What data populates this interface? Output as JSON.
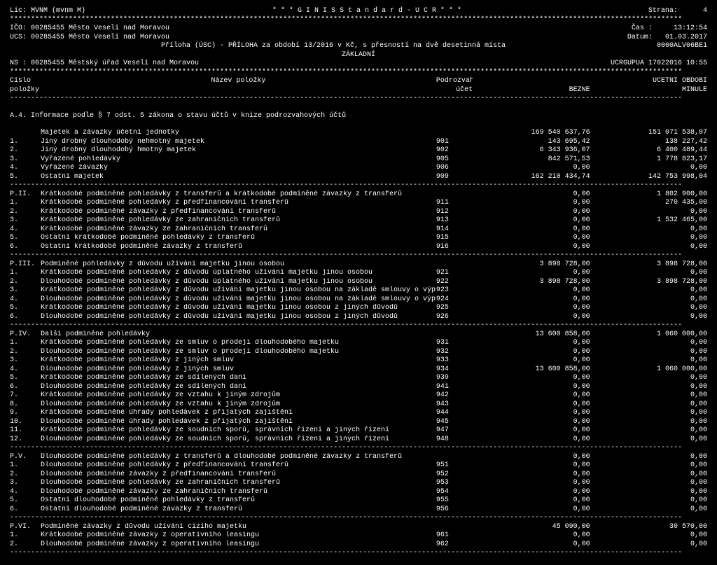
{
  "header": {
    "lic": "Lic: MVNM (mvnm M)",
    "system": "* * *   G I N I S   S t a n d a r d  -  U C R   * * *",
    "page_label": "Strana:",
    "page_no": "4",
    "ico": "IČO: 00285455   Město Veselí nad Moravou",
    "ucs": "UCS: 00285455   Město Veselí nad Moravou",
    "time_label": "Čas  :",
    "time": "13:12:54",
    "date_label": "Datum:",
    "date": "01.03.2017",
    "report": "Příloha (ÚSC) - PŘÍLOHA  za období 13/2016 v Kč, s přesností na dvě desetinná místa",
    "report_sub": "ZÁKLADNÍ",
    "code_right": "0000ALV06BE1",
    "ns": "NS : 00285455   Městský úřad Veselí nad Moravou",
    "ucrg": "UCRGUPUA 17022016 10:55",
    "col_cislo": "Číslo",
    "col_polozky": "položky",
    "col_nazev": "Název položky",
    "col_podrozv": "Podrozvahový",
    "col_ucet": "účet",
    "col_ucetni": "ÚČETNÍ OBDOBÍ",
    "col_bezne": "BĚŽNÉ",
    "col_minule": "MINULÉ"
  },
  "stars": "****************************************************************************************************************************************************************",
  "dashes": "----------------------------------------------------------------------------------------------------------------------------------------------------------------",
  "a4_title": "A.4. Informace podle § 7 odst. 5 zákona o stavu účtů v knize podrozvahových účtů",
  "sections": [
    {
      "head": {
        "sec": "",
        "desc": "Majetek a závazky účetní jednotky",
        "acct": "",
        "b": "169 540 637,76",
        "m": "151 071 538,07"
      },
      "rows": [
        {
          "sec": "1.",
          "desc": "Jiný drobný dlouhodobý nehmotný majetek",
          "acct": "901",
          "b": "143 695,42",
          "m": "138 227,42"
        },
        {
          "sec": "2.",
          "desc": "Jiný drobný dlouhodobý hmotný majetek",
          "acct": "902",
          "b": "6 343 936,07",
          "m": "6 400 489,44"
        },
        {
          "sec": "3.",
          "desc": "Vyřazené pohledávky",
          "acct": "905",
          "b": "842 571,53",
          "m": "1 778 823,17"
        },
        {
          "sec": "4.",
          "desc": "Vyřazené závazky",
          "acct": "906",
          "b": "0,00",
          "m": "0,00"
        },
        {
          "sec": "5.",
          "desc": "Ostatní majetek",
          "acct": "909",
          "b": "162 210 434,74",
          "m": "142 753 998,04"
        }
      ]
    },
    {
      "head": {
        "sec": "P.II.",
        "desc": "Krátkodobé podmíněné pohledávky z transferů a krátkodobé podmíněné závazky z transferů",
        "acct": "",
        "b": "0,00",
        "m": "1 802 900,00"
      },
      "rows": [
        {
          "sec": "1.",
          "desc": "Krátkodobé podmíněné pohledávky z předfinancování transferů",
          "acct": "911",
          "b": "0,00",
          "m": "270 435,00"
        },
        {
          "sec": "2.",
          "desc": "Krátkodobé podmíněné závazky z předfinancování transferů",
          "acct": "912",
          "b": "0,00",
          "m": "0,00"
        },
        {
          "sec": "3.",
          "desc": "Krátkodobé podmíněné pohledávky ze zahraničních transferů",
          "acct": "913",
          "b": "0,00",
          "m": "1 532 465,00"
        },
        {
          "sec": "4.",
          "desc": "Krátkodobé podmíněné závazky ze zahraničních transferů",
          "acct": "914",
          "b": "0,00",
          "m": "0,00"
        },
        {
          "sec": "5.",
          "desc": "Ostatní krátkodobé podmíněné pohledávky z transferů",
          "acct": "915",
          "b": "0,00",
          "m": "0,00"
        },
        {
          "sec": "6.",
          "desc": "Ostatní krátkodobé podmíněné závazky z transferů",
          "acct": "916",
          "b": "0,00",
          "m": "0,00"
        }
      ]
    },
    {
      "head": {
        "sec": "P.III.",
        "desc": "Podmíněné pohledávky z důvodu užívání majetku jinou osobou",
        "acct": "",
        "b": "3 898 728,00",
        "m": "3 898 728,00"
      },
      "rows": [
        {
          "sec": "1.",
          "desc": "Krátkodobé podmíněné pohledávky z důvodu úplatného užívání majetku jinou osobou",
          "acct": "921",
          "b": "0,00",
          "m": "0,00"
        },
        {
          "sec": "2.",
          "desc": "Dlouhodobé podmíněné pohledávky z důvodu úplatného užívání majetku jinou osobou",
          "acct": "922",
          "b": "3 898 728,00",
          "m": "3 898 728,00"
        },
        {
          "sec": "3.",
          "desc": "Krátkodobé podmíněné pohledávky z důvodu užívání majetku jinou osobou na základě smlouvy o výpůjčce",
          "acct": "923",
          "b": "0,00",
          "m": "0,00"
        },
        {
          "sec": "4.",
          "desc": "Dlouhodobé podmíněné pohledávky z důvodu užívání majetku jinou osobou na základě smlouvy o výpůjčce",
          "acct": "924",
          "b": "0,00",
          "m": "0,00"
        },
        {
          "sec": "5.",
          "desc": "Krátkodobé podmíněné pohledávky z důvodu užívání majetku jinou osobou z jiných důvodů",
          "acct": "925",
          "b": "0,00",
          "m": "0,00"
        },
        {
          "sec": "6.",
          "desc": "Dlouhodobé podmíněné pohledávky z důvodu užívání majetku jinou osobou z jiných důvodů",
          "acct": "926",
          "b": "0,00",
          "m": "0,00"
        }
      ]
    },
    {
      "head": {
        "sec": "P.IV.",
        "desc": "Další podmíněné pohledávky",
        "acct": "",
        "b": "13 600 858,00",
        "m": "1 060 000,00"
      },
      "rows": [
        {
          "sec": "1.",
          "desc": "Krátkodobé podmíněné pohledávky ze smluv o prodeji dlouhodobého majetku",
          "acct": "931",
          "b": "0,00",
          "m": "0,00"
        },
        {
          "sec": "2.",
          "desc": "Dlouhodobé podmíněné pohledávky ze smluv o prodeji dlouhodobého majetku",
          "acct": "932",
          "b": "0,00",
          "m": "0,00"
        },
        {
          "sec": "3.",
          "desc": "Krátkodobé podmíněné pohledávky z jiných smluv",
          "acct": "933",
          "b": "0,00",
          "m": "0,00"
        },
        {
          "sec": "4.",
          "desc": "Dlouhodobé podmíněné pohledávky z jiných smluv",
          "acct": "934",
          "b": "13 600 858,00",
          "m": "1 060 000,00"
        },
        {
          "sec": "5.",
          "desc": "Krátkodobé podmíněné pohledávky ze sdílených daní",
          "acct": "939",
          "b": "0,00",
          "m": "0,00"
        },
        {
          "sec": "6.",
          "desc": "Dlouhodobé podmíněné pohledávky ze sdílených daní",
          "acct": "941",
          "b": "0,00",
          "m": "0,00"
        },
        {
          "sec": "7.",
          "desc": "Krátkodobé podmíněné pohledávky ze vztahu k jiným zdrojům",
          "acct": "942",
          "b": "0,00",
          "m": "0,00"
        },
        {
          "sec": "8.",
          "desc": "Dlouhodobé podmíněné pohledávky ze vztahu k jiným zdrojům",
          "acct": "943",
          "b": "0,00",
          "m": "0,00"
        },
        {
          "sec": "9.",
          "desc": "Krátkodobé podmíněné úhrady pohledávek z přijatých zajištění",
          "acct": "944",
          "b": "0,00",
          "m": "0,00"
        },
        {
          "sec": "10.",
          "desc": "Dlouhodobé podmíněné úhrady pohledávek z přijatých zajištění",
          "acct": "945",
          "b": "0,00",
          "m": "0,00"
        },
        {
          "sec": "11.",
          "desc": "Krátkodobé podmíněné pohledávky ze soudních sporů, správních řízení a jiných řízení",
          "acct": "947",
          "b": "0,00",
          "m": "0,00"
        },
        {
          "sec": "12.",
          "desc": "Dlouhodobé podmíněné pohledávky ze soudních sporů, správních řízení a jiných řízení",
          "acct": "948",
          "b": "0,00",
          "m": "0,00"
        }
      ]
    },
    {
      "head": {
        "sec": "P.V.",
        "desc": "Dlouhodobé podmíněné pohledávky z transferů a dlouhodobé podmíněné závazky z transferů",
        "acct": "",
        "b": "0,00",
        "m": "0,00"
      },
      "rows": [
        {
          "sec": "1.",
          "desc": "Dlouhodobé podmíněné pohledávky z předfinancování transferů",
          "acct": "951",
          "b": "0,00",
          "m": "0,00"
        },
        {
          "sec": "2.",
          "desc": "Dlouhodobé podmíněné závazky z předfinancování transferů",
          "acct": "952",
          "b": "0,00",
          "m": "0,00"
        },
        {
          "sec": "3.",
          "desc": "Dlouhodobé podmíněné pohledávky ze zahraničních transferů",
          "acct": "953",
          "b": "0,00",
          "m": "0,00"
        },
        {
          "sec": "4.",
          "desc": "Dlouhodobé podmíněné závazky ze zahraničních transferů",
          "acct": "954",
          "b": "0,00",
          "m": "0,00"
        },
        {
          "sec": "5.",
          "desc": "Ostatní dlouhodobé podmíněné pohledávky z transferů",
          "acct": "955",
          "b": "0,00",
          "m": "0,00"
        },
        {
          "sec": "6.",
          "desc": "Ostatní dlouhodobé podmíněné závazky z transferů",
          "acct": "956",
          "b": "0,00",
          "m": "0,00"
        }
      ]
    },
    {
      "head": {
        "sec": "P.VI.",
        "desc": "Podmíněné závazky z důvodu užívání cizího majetku",
        "acct": "",
        "b": "45 090,00",
        "m": "30 570,00"
      },
      "rows": [
        {
          "sec": "1.",
          "desc": "Krátkodobé podmíněné závazky z operativního leasingu",
          "acct": "961",
          "b": "0,00",
          "m": "0,00"
        },
        {
          "sec": "2.",
          "desc": "Dlouhodobé podmíněné závazky z operativního leasingu",
          "acct": "962",
          "b": "0,00",
          "m": "0,00"
        }
      ]
    }
  ]
}
